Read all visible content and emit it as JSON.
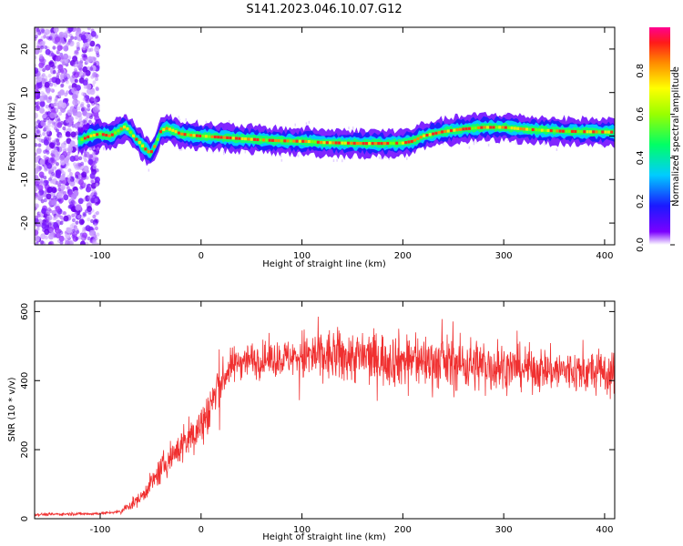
{
  "title": "S141.2023.046.10.07.G12",
  "colors": {
    "snr_line": "#f03030",
    "text": "#000000"
  },
  "chart_data": [
    {
      "type": "heatmap",
      "xlabel": "Height of straight line (km)",
      "ylabel": "Frequency (Hz)",
      "xlim": [
        -165,
        410
      ],
      "ylim": [
        -25,
        25
      ],
      "xticks": [
        -100,
        0,
        100,
        200,
        300,
        400
      ],
      "yticks": [
        -20,
        -10,
        0,
        10,
        20
      ],
      "colorbar": {
        "label": "Normalized spectral amplitude",
        "range": [
          0.0,
          1.0
        ],
        "ticks": [
          0.0,
          0.2,
          0.4,
          0.6,
          0.8
        ],
        "colormap": "rainbow"
      },
      "ridge": {
        "x": [
          -120,
          -110,
          -100,
          -90,
          -80,
          -75,
          -65,
          -55,
          -50,
          -45,
          -40,
          -35,
          -30,
          -20,
          -10,
          0,
          20,
          40,
          60,
          80,
          100,
          110,
          120,
          140,
          160,
          180,
          200,
          210,
          220,
          240,
          260,
          280,
          300,
          320,
          340,
          360,
          380,
          410
        ],
        "y": [
          -1,
          0,
          0.5,
          0,
          1.5,
          2.2,
          -0.5,
          -3,
          -4,
          -2,
          1,
          1.8,
          1.5,
          0.5,
          0.2,
          0,
          -0.3,
          -0.6,
          -0.9,
          -1.1,
          -1.2,
          -1.3,
          -1.5,
          -1.6,
          -1.7,
          -1.7,
          -1.6,
          -1.2,
          0,
          1,
          1.6,
          2,
          2,
          1.6,
          1.3,
          1.1,
          1,
          0.9
        ]
      }
    },
    {
      "type": "line",
      "xlabel": "Height of straight line (km)",
      "ylabel": "SNR (10 * v/v)",
      "xlim": [
        -165,
        410
      ],
      "ylim": [
        0,
        630
      ],
      "xticks": [
        -100,
        0,
        100,
        200,
        300,
        400
      ],
      "yticks": [
        0,
        200,
        400,
        600
      ],
      "trend": {
        "x": [
          -165,
          -100,
          -80,
          -60,
          -50,
          -40,
          -30,
          -20,
          -10,
          0,
          10,
          20,
          30,
          40,
          60,
          100,
          150,
          200,
          250,
          300,
          350,
          410
        ],
        "y": [
          12,
          15,
          20,
          60,
          100,
          140,
          180,
          210,
          240,
          270,
          330,
          400,
          440,
          460,
          460,
          470,
          470,
          460,
          450,
          440,
          430,
          420
        ]
      }
    }
  ]
}
